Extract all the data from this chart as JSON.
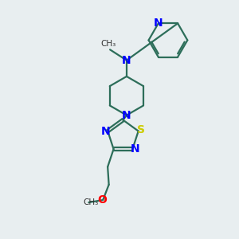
{
  "bg_color": "#e8eef0",
  "bond_color": "#2d6e5a",
  "N_color": "#0000ff",
  "S_color": "#cccc00",
  "O_color": "#ff0000",
  "line_width": 1.6,
  "font_size": 10,
  "fig_size": [
    3.0,
    3.0
  ],
  "dpi": 100,
  "xlim": [
    0,
    10
  ],
  "ylim": [
    0,
    10
  ]
}
